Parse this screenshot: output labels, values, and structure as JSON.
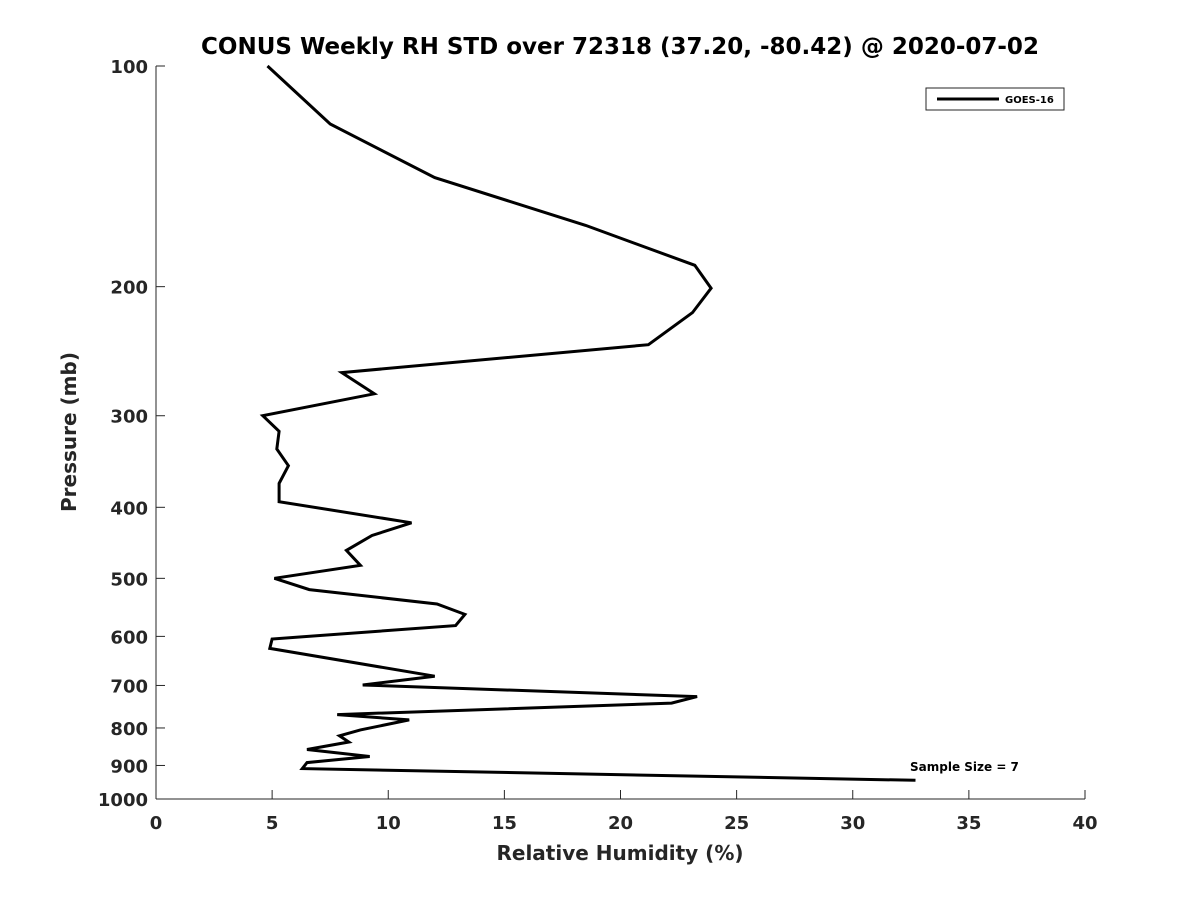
{
  "chart_data": {
    "type": "line",
    "title": "CONUS Weekly RH STD over 72318 (37.20, -80.42) @ 2020-07-02",
    "xlabel": "Relative Humidity (%)",
    "ylabel": "Pressure (mb)",
    "xlim": [
      0,
      40
    ],
    "ylim": [
      100,
      1000
    ],
    "y_scale": "log",
    "y_reversed": true,
    "grid": false,
    "legend_position": "top-right",
    "x_ticks": [
      "0",
      "5",
      "10",
      "15",
      "20",
      "25",
      "30",
      "35",
      "40"
    ],
    "y_ticks": [
      "100",
      "200",
      "300",
      "400",
      "500",
      "600",
      "700",
      "800",
      "900",
      "1000"
    ],
    "series": [
      {
        "name": "GOES-16",
        "color": "#000000",
        "x": [
          4.8,
          7.5,
          12.0,
          18.5,
          23.2,
          23.9,
          23.1,
          21.2,
          8.0,
          9.4,
          4.6,
          5.3,
          5.2,
          5.7,
          5.3,
          5.3,
          11.0,
          9.3,
          8.2,
          8.8,
          5.1,
          6.6,
          12.1,
          13.3,
          12.9,
          5.0,
          4.9,
          12.0,
          8.9,
          23.3,
          22.2,
          7.8,
          10.9,
          8.8,
          7.9,
          8.3,
          6.5,
          9.2,
          6.5,
          6.3,
          32.7
        ],
        "y": [
          100,
          120,
          142,
          165,
          187,
          201,
          217,
          240,
          262,
          280,
          300,
          315,
          333,
          351,
          371,
          393,
          420,
          437,
          458,
          480,
          500,
          518,
          542,
          560,
          580,
          605,
          623,
          680,
          699,
          725,
          740,
          767,
          780,
          805,
          820,
          836,
          856,
          875,
          892,
          909,
          943
        ]
      }
    ],
    "annotations": [
      "Sample Size = 7"
    ]
  }
}
